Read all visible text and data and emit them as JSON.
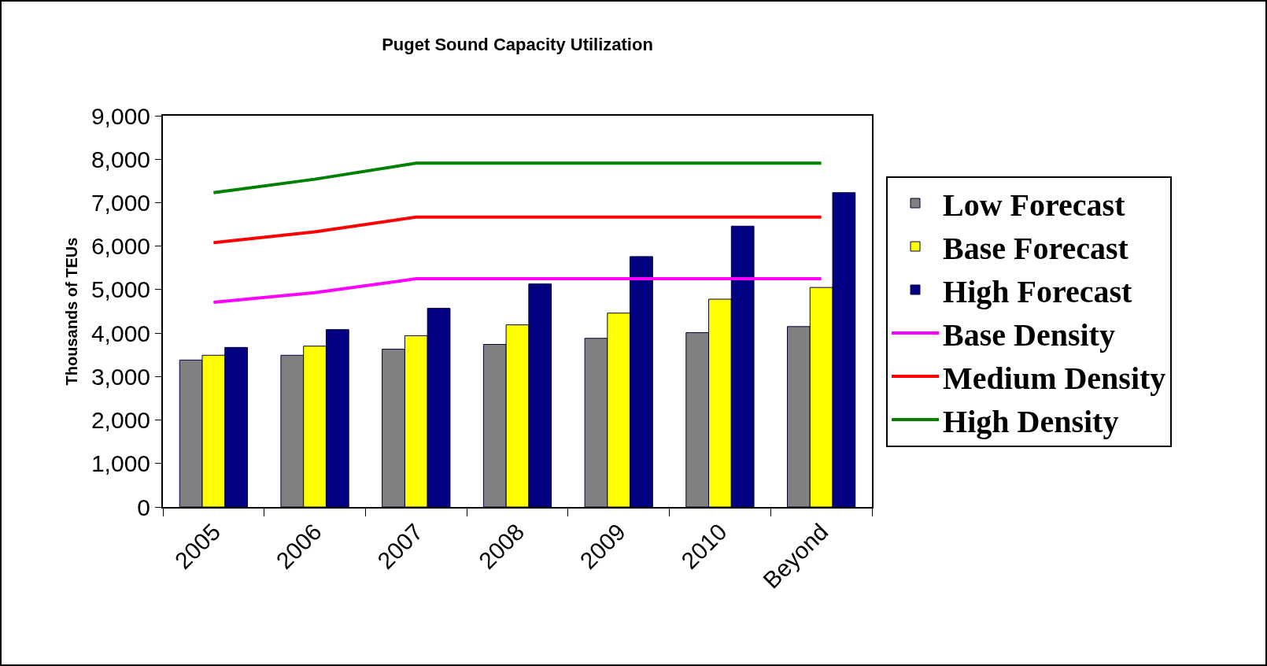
{
  "chart_data": {
    "type": "bar",
    "title": "Puget Sound Capacity Utilization",
    "ylabel": "Thousands of TEUs",
    "categories": [
      "2005",
      "2006",
      "2007",
      "2008",
      "2009",
      "2010",
      "Beyond"
    ],
    "series": [
      {
        "name": "Low Forecast",
        "color": "#808080",
        "values": [
          3380,
          3490,
          3630,
          3740,
          3880,
          4010,
          4150
        ]
      },
      {
        "name": "Base Forecast",
        "color": "#ffff00",
        "values": [
          3490,
          3700,
          3940,
          4190,
          4460,
          4780,
          5050
        ]
      },
      {
        "name": "High Forecast",
        "color": "#000080",
        "values": [
          3670,
          4080,
          4570,
          5130,
          5760,
          6460,
          7230
        ]
      },
      {
        "name": "Base Density",
        "type": "line",
        "color": "#ff00ff",
        "values": [
          4710,
          4930,
          5250,
          5250,
          5250,
          5250,
          5250
        ]
      },
      {
        "name": "Medium Density",
        "type": "line",
        "color": "#ff0000",
        "values": [
          6080,
          6330,
          6670,
          6670,
          6670,
          6670,
          6670
        ]
      },
      {
        "name": "High Density",
        "type": "line",
        "color": "#008000",
        "values": [
          7230,
          7540,
          7910,
          7910,
          7910,
          7910,
          7910
        ]
      }
    ],
    "ylim": [
      0,
      9000
    ],
    "yticks": [
      0,
      {
        "value": 1000,
        "label": "1,000"
      },
      {
        "value": 2000,
        "label": "2,000"
      },
      {
        "value": 3000,
        "label": "3,000"
      },
      {
        "value": 4000,
        "label": "4,000"
      },
      {
        "value": 5000,
        "label": "5,000"
      },
      {
        "value": 6000,
        "label": "6,000"
      },
      {
        "value": 7000,
        "label": "7,000"
      },
      {
        "value": 8000,
        "label": "8,000"
      },
      {
        "value": 9000,
        "label": "9,000"
      }
    ],
    "grid": false,
    "legend": "right",
    "marker": "none",
    "line_style": "solid"
  }
}
